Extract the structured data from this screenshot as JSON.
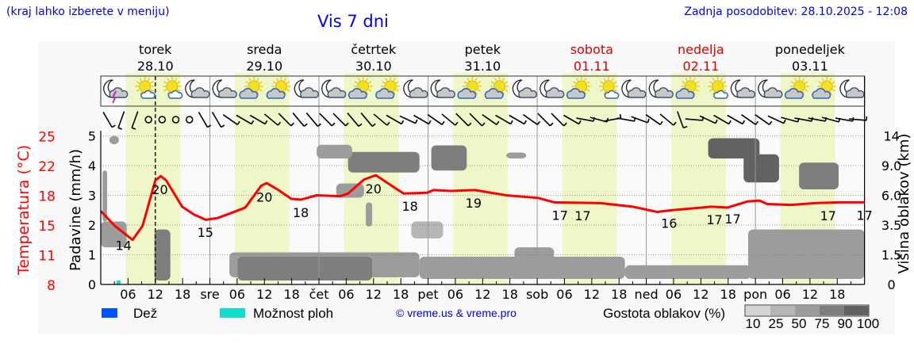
{
  "header": {
    "hint": "(kraj lahko izberete v meniju)",
    "title": "Vis 7 dni",
    "updated": "Zadnja posodobitev: 28.10.2025 - 12:08"
  },
  "days": [
    {
      "name": "torek",
      "date": "28.10",
      "weekend": false,
      "short": ""
    },
    {
      "name": "sreda",
      "date": "29.10",
      "weekend": false,
      "short": "sre"
    },
    {
      "name": "četrtek",
      "date": "30.10",
      "weekend": false,
      "short": "čet"
    },
    {
      "name": "petek",
      "date": "31.10",
      "weekend": false,
      "short": "pet"
    },
    {
      "name": "sobota",
      "date": "01.11",
      "weekend": true,
      "short": "sob"
    },
    {
      "name": "nedelja",
      "date": "02.11",
      "weekend": true,
      "short": "ned"
    },
    {
      "name": "ponedeljek",
      "date": "03.11",
      "weekend": false,
      "short": "pon"
    }
  ],
  "legend": {
    "rain": "Dež",
    "showers": "Možnost ploh",
    "copyright": "© vreme.us & vreme.pro",
    "cloud_density": "Gostota oblakov (%)",
    "density_levels": [
      "10",
      "25",
      "50",
      "75",
      "90",
      "100"
    ]
  },
  "colors": {
    "rain": "#0055ff",
    "showers": "#11ddcc",
    "temperature": "#ff0000",
    "daylight": "#eff7c8",
    "weekend": "#dd0000",
    "link": "#0000ee",
    "density": [
      "#d4d4d4",
      "#b6b6b6",
      "#9c9c9c",
      "#7e7e7e",
      "#626262",
      "#4a4a4a"
    ]
  },
  "chart_data": {
    "type": "line",
    "title": "Vis 7 dni",
    "x_unit": "hours from 28.10 00:00",
    "xlim": [
      0,
      168
    ],
    "hour_ticks": [
      "06",
      "12",
      "18"
    ],
    "current_time_hour": 12,
    "daylight": [
      5.5,
      17.5
    ],
    "axes": {
      "precip": {
        "label": "Padavine (mm/h)",
        "ticks": [
          "0",
          "1",
          "2",
          "3",
          "4",
          "5"
        ],
        "ylim": [
          0,
          5
        ]
      },
      "temperature": {
        "label": "Temperatura (°C)",
        "ticks": [
          "8",
          "11",
          "15",
          "18",
          "22",
          "25"
        ],
        "ylim": [
          8,
          25
        ]
      },
      "cloud_height": {
        "label": "Višina oblakov (km)",
        "ticks": [
          "0",
          "1.5",
          "3.5",
          "6.0",
          "9.0",
          "14"
        ]
      }
    },
    "temperature": {
      "name": "Temperatura (°C)",
      "x": [
        0,
        3.1,
        7,
        9.2,
        12,
        13.2,
        14.4,
        17.9,
        20.5,
        23.1,
        25.7,
        28.3,
        31.8,
        35.3,
        36.5,
        38.8,
        41.9,
        44,
        47.5,
        52.7,
        54.4,
        57.9,
        60.5,
        63.1,
        66.6,
        71.8,
        73.2,
        77,
        82.3,
        89.2,
        96.2,
        99.7,
        110,
        117,
        119.7,
        122.3,
        125.7,
        134.4,
        137.9,
        142.3,
        144.9,
        146.6,
        151.8,
        157,
        162.3,
        168
      ],
      "y": [
        16.4,
        14.7,
        13.1,
        14.7,
        19.9,
        20.4,
        19.9,
        16.9,
        16.0,
        15.4,
        15.6,
        16.1,
        16.8,
        19.3,
        19.6,
        18.9,
        17.8,
        17.7,
        18.2,
        18.1,
        18.4,
        20.0,
        20.5,
        19.6,
        18.4,
        18.5,
        18.8,
        18.7,
        18.8,
        18.2,
        17.9,
        17.4,
        17.3,
        16.9,
        16.6,
        16.3,
        16.5,
        16.9,
        16.8,
        17.5,
        17.6,
        17.2,
        17.1,
        17.3,
        17.4,
        17.4
      ]
    },
    "temp_labels": [
      {
        "h": 5,
        "v": "14"
      },
      {
        "h": 13,
        "v": "20"
      },
      {
        "h": 23,
        "v": "15"
      },
      {
        "h": 36,
        "v": "20"
      },
      {
        "h": 44,
        "v": "18"
      },
      {
        "h": 60,
        "v": "20"
      },
      {
        "h": 68,
        "v": "18"
      },
      {
        "h": 82,
        "v": "19"
      },
      {
        "h": 101,
        "v": "17"
      },
      {
        "h": 106,
        "v": "17"
      },
      {
        "h": 125,
        "v": "16"
      },
      {
        "h": 135,
        "v": "17"
      },
      {
        "h": 139,
        "v": "17"
      },
      {
        "h": 160,
        "v": "17"
      },
      {
        "h": 168,
        "v": "17"
      }
    ],
    "showers": [
      {
        "h": 4,
        "mm": 0.1
      }
    ],
    "rain": [],
    "clouds": [
      {
        "h0": 28.3,
        "h1": 70.1,
        "z0": 0.36,
        "z1": 1.66,
        "d": 50
      },
      {
        "h0": 30.1,
        "h1": 59.7,
        "z0": 0.2,
        "z1": 1.4,
        "d": 75
      },
      {
        "h0": 70.1,
        "h1": 115.3,
        "z0": 0.28,
        "z1": 1.4,
        "d": 50
      },
      {
        "h0": 91,
        "h1": 99.7,
        "z0": 0.75,
        "z1": 2.0,
        "d": 50
      },
      {
        "h0": 115.3,
        "h1": 143.1,
        "z0": 0.28,
        "z1": 0.97,
        "d": 50
      },
      {
        "h0": 142.4,
        "h1": 168,
        "z0": 0.28,
        "z1": 3.2,
        "d": 50
      },
      {
        "h0": 0,
        "h1": 5.7,
        "z0": 2.0,
        "z1": 3.8,
        "d": 50
      },
      {
        "h0": 11.8,
        "h1": 15.3,
        "z0": 0.2,
        "z1": 3.2,
        "d": 75
      },
      {
        "h0": 1.9,
        "h1": 4,
        "z0": 12.6,
        "z1": 14,
        "d": 50
      },
      {
        "h0": 0.4,
        "h1": 1.4,
        "z0": 3.8,
        "z1": 8.5,
        "d": 50
      },
      {
        "h0": 54.4,
        "h1": 70.1,
        "z0": 8.3,
        "z1": 11.3,
        "d": 75
      },
      {
        "h0": 47.5,
        "h1": 55.3,
        "z0": 10.2,
        "z1": 12.5,
        "d": 50
      },
      {
        "h0": 51.8,
        "h1": 57.9,
        "z0": 5.8,
        "z1": 7.2,
        "d": 50
      },
      {
        "h0": 72.7,
        "h1": 80.5,
        "z0": 8.5,
        "z1": 12.4,
        "d": 75
      },
      {
        "h0": 89.2,
        "h1": 93.6,
        "z0": 10.2,
        "z1": 11.2,
        "d": 50
      },
      {
        "h0": 133.6,
        "h1": 144.9,
        "z0": 10.2,
        "z1": 13.6,
        "d": 90
      },
      {
        "h0": 141.4,
        "h1": 149.2,
        "z0": 7.3,
        "z1": 10.9,
        "d": 90
      },
      {
        "h0": 153.6,
        "h1": 162.3,
        "z0": 6.6,
        "z1": 9.5,
        "d": 75
      },
      {
        "h0": 68.3,
        "h1": 75.3,
        "z0": 2.6,
        "z1": 3.8,
        "d": 25
      },
      {
        "h0": 58.3,
        "h1": 59.7,
        "z0": 3.4,
        "z1": 5.4,
        "d": 50
      }
    ],
    "weather_icons": [
      "moon-cloud-lightning",
      "sun-small-cloud",
      "sun-small-cloud",
      "moon-cloud",
      "moon-cloud",
      "sun-cloud",
      "sun-cloud",
      "moon-cloud",
      "moon-cloud",
      "sun-cloud",
      "sun-cloud",
      "moon-cloud",
      "moon-cloud",
      "sun-cloud",
      "sun-cloud",
      "moon-cloud",
      "moon-cloud",
      "sun-cloud",
      "sun-small-cloud",
      "moon-cloud",
      "moon-cloud",
      "sun-cloud",
      "sun-small-cloud",
      "moon-cloud",
      "moon-cloud",
      "sun-cloud",
      "sun-cloud",
      "moon-cloud"
    ],
    "wind_tilt_deg": [
      -30,
      20,
      20,
      null,
      null,
      null,
      null,
      -30,
      -30,
      -55,
      -60,
      -60,
      -50,
      -45,
      -40,
      -40,
      -45,
      -45,
      -40,
      -40,
      -50,
      -60,
      -65,
      -60,
      -55,
      -50,
      -45,
      -45,
      -55,
      -60,
      -60,
      -55,
      -45,
      -45,
      -60,
      -80,
      -75,
      -100,
      -80,
      -70,
      -55,
      -50,
      -20,
      -85,
      -65,
      -60,
      -60,
      -55,
      -55,
      -65,
      -75,
      -80,
      -80,
      -75,
      -80,
      -85
    ]
  }
}
